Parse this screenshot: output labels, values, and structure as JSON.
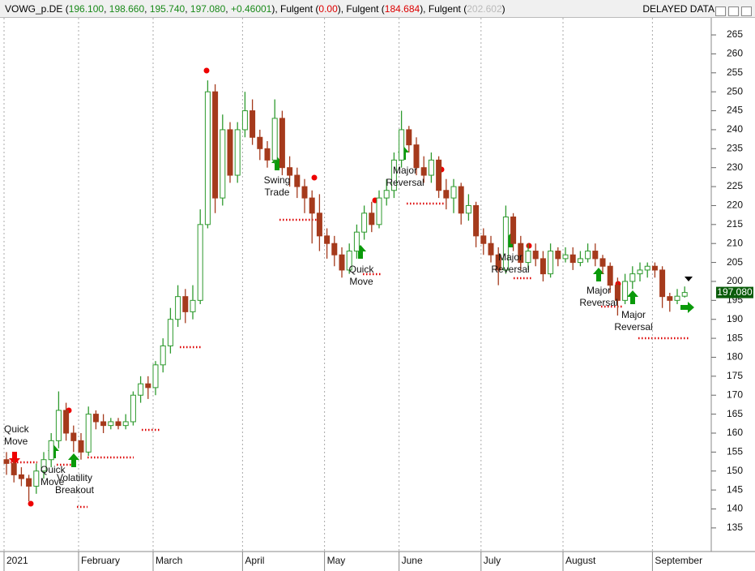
{
  "header": {
    "symbol": "VOWG_p.DE",
    "ohlc": [
      "196.100",
      "198.660",
      "195.740",
      "197.080",
      "+0.46001"
    ],
    "studies": [
      {
        "name": "Fulgent",
        "value": "0.00"
      },
      {
        "name": "Fulgent",
        "value": "184.684"
      },
      {
        "name": "Fulgent",
        "value": "202.602"
      }
    ],
    "status": "DELAYED DATA"
  },
  "chart_data": {
    "type": "candlestick",
    "categories": [
      "2021",
      null,
      null,
      null,
      null,
      null,
      null,
      null,
      null,
      null,
      "February",
      null,
      null,
      null,
      null,
      null,
      null,
      null,
      null,
      null,
      "March",
      null,
      null,
      null,
      null,
      null,
      null,
      null,
      null,
      null,
      null,
      null,
      "April",
      null,
      null,
      null,
      null,
      null,
      null,
      null,
      null,
      null,
      null,
      "May",
      null,
      null,
      null,
      null,
      null,
      null,
      null,
      null,
      null,
      "June",
      null,
      null,
      null,
      null,
      null,
      null,
      null,
      null,
      null,
      null,
      "July",
      null,
      null,
      null,
      null,
      null,
      null,
      null,
      null,
      null,
      null,
      "August",
      null,
      null,
      null,
      null,
      null,
      null,
      null,
      null,
      null,
      null,
      null,
      "September",
      null,
      null,
      null,
      null
    ],
    "series": [
      {
        "name": "VOWG_p.DE",
        "up_color": "#2e9a2e",
        "down_color": "#a53a1c",
        "open": [
          153,
          152,
          149,
          148,
          146,
          150,
          153,
          158,
          166,
          160,
          158,
          155,
          165,
          163,
          162,
          163,
          162,
          163,
          170,
          173,
          172,
          178,
          183,
          190,
          196,
          192,
          195,
          215,
          250,
          222,
          240,
          228,
          240,
          245,
          238,
          235,
          232,
          243,
          230,
          228,
          225,
          222,
          218,
          212,
          210,
          207,
          203,
          208,
          213,
          218,
          215,
          222,
          224,
          232,
          240,
          236,
          230,
          228,
          232,
          224,
          222,
          225,
          218,
          220,
          212,
          210,
          207,
          203,
          217,
          210,
          205,
          208,
          206,
          202,
          208,
          206,
          207,
          205,
          206,
          208,
          206,
          204,
          199,
          195,
          200,
          202,
          203,
          204,
          203,
          196,
          195,
          196.1
        ],
        "high": [
          155,
          153,
          151,
          149,
          152,
          155,
          160,
          171,
          168,
          162,
          160,
          167,
          166,
          165,
          164,
          164,
          165,
          171,
          175,
          175,
          179,
          185,
          193,
          199,
          198,
          199,
          219,
          253,
          252,
          244,
          242,
          242,
          250,
          248,
          240,
          237,
          248,
          245,
          233,
          230,
          227,
          224,
          223,
          214,
          212,
          209,
          210,
          215,
          220,
          221,
          224,
          227,
          234,
          245,
          241,
          238,
          233,
          234,
          233,
          227,
          227,
          226,
          223,
          221,
          214,
          212,
          209,
          220,
          218,
          212,
          210,
          210,
          208,
          210,
          209,
          209,
          209,
          208,
          210,
          210,
          207,
          205,
          201,
          202,
          204,
          205,
          205,
          205,
          204,
          197,
          198,
          198.66
        ],
        "low": [
          149,
          147,
          146,
          142,
          144,
          148,
          151,
          156,
          158,
          155,
          153,
          154,
          161,
          160,
          161,
          161,
          161,
          162,
          168,
          169,
          170,
          176,
          181,
          188,
          189,
          190,
          194,
          214,
          218,
          220,
          226,
          226,
          238,
          236,
          232,
          230,
          231,
          228,
          225,
          222,
          218,
          210,
          208,
          206,
          204,
          201,
          202,
          206,
          211,
          213,
          214,
          220,
          222,
          230,
          234,
          228,
          226,
          226,
          222,
          219,
          218,
          215,
          216,
          209,
          207,
          205,
          199,
          202,
          208,
          203,
          203,
          204,
          200,
          201,
          204,
          205,
          203,
          204,
          205,
          204,
          202,
          197,
          191,
          194,
          198,
          200,
          201,
          201,
          193,
          192,
          194,
          195.74
        ],
        "close": [
          152,
          149,
          148,
          146,
          150,
          153,
          158,
          166,
          160,
          158,
          155,
          165,
          163,
          162,
          163,
          162,
          163,
          170,
          173,
          172,
          178,
          183,
          190,
          196,
          192,
          195,
          215,
          250,
          222,
          240,
          228,
          240,
          245,
          238,
          235,
          232,
          243,
          230,
          228,
          225,
          222,
          218,
          212,
          210,
          207,
          203,
          208,
          213,
          218,
          215,
          222,
          224,
          232,
          240,
          236,
          230,
          228,
          232,
          224,
          222,
          225,
          218,
          220,
          212,
          210,
          207,
          203,
          217,
          210,
          205,
          208,
          206,
          202,
          208,
          206,
          207,
          205,
          206,
          208,
          206,
          204,
          199,
          195,
          200,
          202,
          203,
          204,
          203,
          196,
          195,
          196.1,
          197.08
        ],
        "last_label": "197.080"
      }
    ],
    "ylim": [
      129.2,
      269.5
    ],
    "yticks": [
      135,
      140,
      145,
      150,
      155,
      160,
      165,
      170,
      175,
      180,
      185,
      190,
      195,
      200,
      205,
      210,
      215,
      220,
      225,
      230,
      235,
      240,
      245,
      250,
      255,
      260,
      265
    ],
    "grid": false,
    "month_grid": true,
    "annotations": [
      [
        "Quick",
        "Move"
      ],
      [
        "Quick",
        "Move"
      ],
      [
        "Volatility",
        "Breakout"
      ],
      [
        "Swing",
        "Trade"
      ],
      [
        "Major",
        "Reversal"
      ],
      [
        "Quick",
        "Move"
      ],
      [
        "Major",
        "Reversal"
      ],
      [
        "Major",
        "Reversal"
      ],
      [
        "Major",
        "Reversal"
      ]
    ]
  }
}
